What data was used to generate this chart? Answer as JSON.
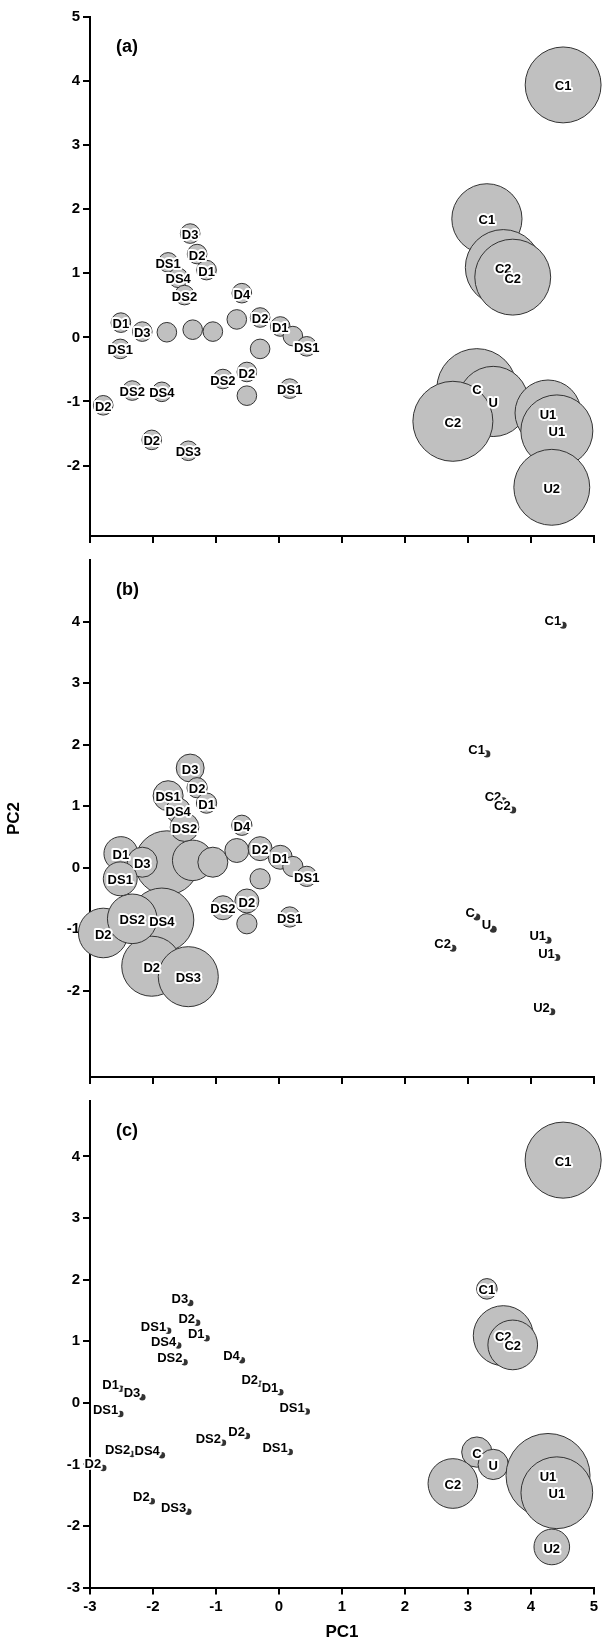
{
  "chart_data": [
    {
      "type": "bubble",
      "annotations": [
        "(a)"
      ],
      "tick_labels": "y",
      "xlim": [
        -3,
        5
      ],
      "xticks": [
        -3,
        -2,
        -1,
        0,
        1,
        2,
        3,
        4,
        5
      ],
      "ylim": [
        -3.1,
        5
      ],
      "yticks": [
        -2,
        -1,
        0,
        1,
        2,
        3,
        4,
        5
      ],
      "x": [
        -1.41,
        -1.76,
        -1.3,
        -1.15,
        -1.6,
        -1.5,
        -0.59,
        -2.51,
        -2.17,
        -1.78,
        -1.37,
        -1.05,
        -2.52,
        -0.67,
        -0.3,
        0.02,
        0.22,
        0.44,
        -0.3,
        -0.51,
        -0.89,
        -0.51,
        0.17,
        -2.79,
        -2.33,
        -1.86,
        -2.02,
        -1.44,
        4.51,
        3.3,
        3.56,
        3.71,
        3.14,
        3.4,
        2.76,
        4.27,
        4.41,
        4.33
      ],
      "series": [
        {
          "color": "#c0c0c0",
          "values": [
            1.62,
            1.17,
            1.3,
            1.05,
            0.93,
            0.66,
            0.69,
            0.23,
            0.09,
            0.08,
            0.12,
            0.09,
            -0.18,
            0.28,
            0.31,
            0.17,
            0.02,
            -0.14,
            -0.18,
            -0.54,
            -0.65,
            -0.91,
            -0.8,
            -1.06,
            -0.83,
            -0.85,
            -1.6,
            -1.77,
            3.94,
            1.85,
            1.09,
            0.94,
            -0.8,
            -1.0,
            -1.31,
            -1.18,
            -1.46,
            -2.34
          ],
          "sizes": [
            0.06,
            0.06,
            0.06,
            0.06,
            0.06,
            0.06,
            0.06,
            0.06,
            0.06,
            0.06,
            0.06,
            0.06,
            0.06,
            0.06,
            0.06,
            0.06,
            0.06,
            0.06,
            0.06,
            0.06,
            0.06,
            0.06,
            0.06,
            0.06,
            0.06,
            0.06,
            0.06,
            0.06,
            0.9,
            0.77,
            0.9,
            0.9,
            1,
            0.77,
            1,
            0.68,
            0.81,
            0.9
          ],
          "value_labels": [
            "D3",
            "DS1",
            "D2",
            "D1",
            "DS4",
            "DS2",
            "D4",
            "D1",
            "D3",
            null,
            null,
            null,
            "DS1",
            null,
            "D2",
            "D1",
            null,
            "DS1",
            null,
            "D2",
            "DS2",
            null,
            "DS1",
            "D2",
            "DS2",
            "DS4",
            "D2",
            "DS3",
            "C1",
            "C1",
            "C2",
            "C2",
            "C",
            "U",
            "C2",
            "U1",
            "U1",
            "U2"
          ]
        }
      ]
    },
    {
      "type": "bubble",
      "annotations": [
        "(b)"
      ],
      "tick_labels": "y",
      "ylabel": "PC2",
      "xlim": [
        -3,
        5
      ],
      "xticks": [
        -3,
        -2,
        -1,
        0,
        1,
        2,
        3,
        4,
        5
      ],
      "ylim": [
        -3.4,
        5
      ],
      "yticks": [
        -2,
        -1,
        0,
        1,
        2,
        3,
        4
      ],
      "series": [
        {
          "color": "#c0c0c0",
          "x": [
            -1.78,
            -1.86,
            -2.02,
            -1.44,
            -2.79,
            -2.33,
            -1.37,
            -1.41,
            -1.76,
            -1.3,
            -1.15,
            -1.6,
            -1.5,
            -0.59,
            -2.51,
            -2.17,
            -1.05,
            -2.52,
            -0.67,
            -0.3,
            0.02,
            0.22,
            0.44,
            -0.3,
            -0.51,
            -0.89,
            -0.51,
            0.17
          ],
          "values": [
            0.08,
            -0.85,
            -1.6,
            -1.77,
            -1.06,
            -0.83,
            0.12,
            1.62,
            1.17,
            1.3,
            1.05,
            0.93,
            0.66,
            0.69,
            0.23,
            0.09,
            0.09,
            -0.18,
            0.28,
            0.31,
            0.17,
            0.02,
            -0.14,
            -0.18,
            -0.54,
            -0.65,
            -0.91,
            -0.8
          ],
          "sizes": [
            1,
            1,
            0.88,
            0.88,
            0.6,
            0.6,
            0.4,
            0.19,
            0.22,
            0.1,
            0.1,
            0.15,
            0.2,
            0.1,
            0.28,
            0.22,
            0.22,
            0.28,
            0.14,
            0.14,
            0.14,
            0.1,
            0.1,
            0.1,
            0.14,
            0.14,
            0.1,
            0.1
          ],
          "value_labels": [
            null,
            "DS4",
            "D2",
            "DS3",
            "D2",
            "DS2",
            null,
            "D3",
            "DS1",
            "D2",
            "D1",
            "DS4",
            "DS2",
            "D4",
            "D1",
            "D3",
            null,
            "DS1",
            null,
            "D2",
            "D1",
            null,
            "DS1",
            null,
            "D2",
            "DS2",
            null,
            "DS1"
          ]
        },
        {
          "color": "#333333",
          "x": [
            4.51,
            3.3,
            3.56,
            3.71,
            3.14,
            3.4,
            2.76,
            4.27,
            4.41,
            4.33
          ],
          "values": [
            3.94,
            1.85,
            1.09,
            0.94,
            -0.8,
            -1.0,
            -1.31,
            -1.18,
            -1.46,
            -2.34
          ],
          "sizes": [
            0.012,
            0.012,
            0.012,
            0.012,
            0.012,
            0.012,
            0.012,
            0.012,
            0.012,
            0.012
          ],
          "value_labels": [
            "C1",
            "C1",
            "C2",
            "C2",
            "C",
            "U",
            "C2",
            "U1",
            "U1",
            "U2"
          ]
        }
      ]
    },
    {
      "type": "bubble",
      "annotations": [
        "(c)"
      ],
      "xlabel": "PC1",
      "xlim": [
        -3,
        5
      ],
      "xticks": [
        -3,
        -2,
        -1,
        0,
        1,
        2,
        3,
        4,
        5
      ],
      "ylim": [
        -3,
        4.9
      ],
      "yticks": [
        -3,
        -2,
        -1,
        0,
        1,
        2,
        3,
        4
      ],
      "series": [
        {
          "color": "#333333",
          "x": [
            -1.41,
            -1.76,
            -1.3,
            -1.15,
            -1.6,
            -1.5,
            -0.59,
            -2.51,
            -2.17,
            -2.52,
            -0.3,
            0.02,
            0.44,
            -0.51,
            -0.89,
            0.17,
            -2.79,
            -2.33,
            -1.86,
            -2.02,
            -1.44
          ],
          "values": [
            1.62,
            1.17,
            1.3,
            1.05,
            0.93,
            0.66,
            0.69,
            0.23,
            0.09,
            -0.18,
            0.31,
            0.17,
            -0.14,
            -0.54,
            -0.65,
            -0.8,
            -1.06,
            -0.83,
            -0.85,
            -1.6,
            -1.77
          ],
          "sizes": [
            0.006,
            0.006,
            0.006,
            0.006,
            0.006,
            0.006,
            0.006,
            0.006,
            0.006,
            0.006,
            0.006,
            0.006,
            0.006,
            0.006,
            0.006,
            0.006,
            0.006,
            0.006,
            0.006,
            0.006,
            0.006
          ],
          "value_labels": [
            "D3",
            "DS1",
            "D2",
            "D1",
            "DS4",
            "DS2",
            "D4",
            "D1",
            "D3",
            "DS1",
            "D2",
            "D1",
            "DS1",
            "D2",
            "DS2",
            "DS1",
            "D2",
            "DS2",
            "DS4",
            "D2",
            "DS3"
          ]
        },
        {
          "color": "#c0c0c0",
          "x": [
            4.51,
            3.3,
            3.56,
            3.71,
            3.14,
            3.4,
            2.76,
            4.27,
            4.41,
            4.33
          ],
          "values": [
            3.94,
            1.85,
            1.09,
            0.94,
            -0.8,
            -1.0,
            -1.31,
            -1.18,
            -1.46,
            -2.34
          ],
          "sizes": [
            0.82,
            0.06,
            0.51,
            0.35,
            0.13,
            0.13,
            0.35,
            1,
            0.73,
            0.18
          ],
          "value_labels": [
            "C1",
            "C1",
            "C2",
            "C2",
            "C",
            "U",
            "C2",
            "U1",
            "U1",
            "U2"
          ]
        }
      ]
    }
  ]
}
